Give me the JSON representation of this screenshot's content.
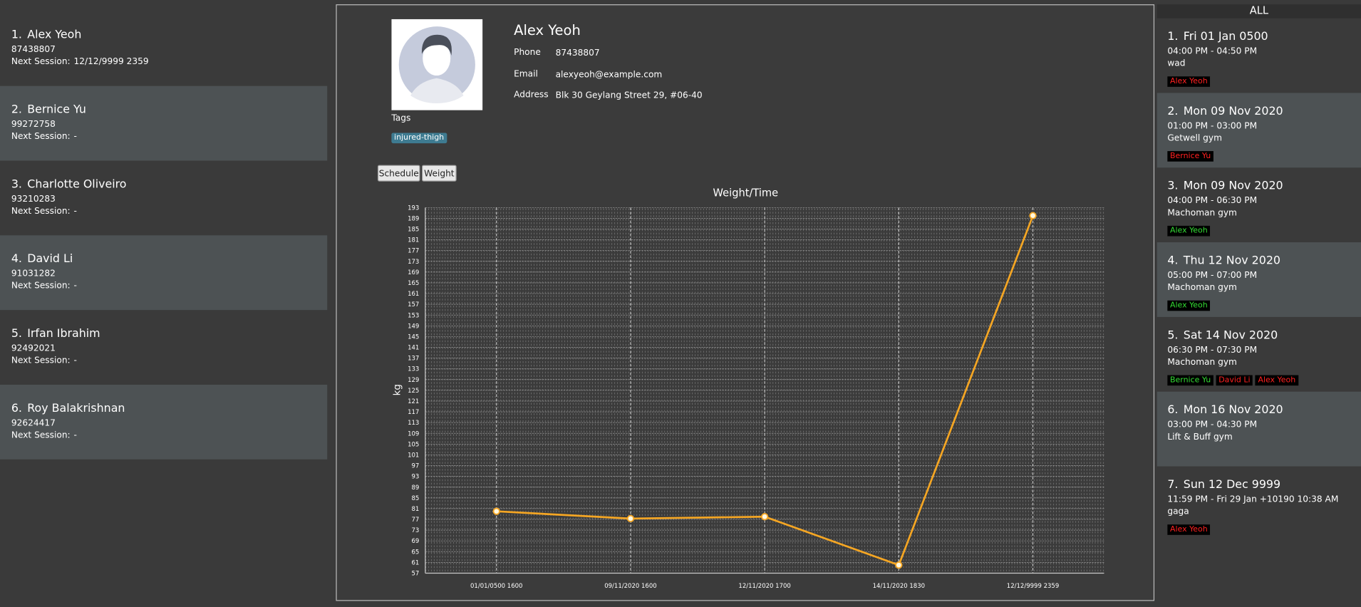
{
  "persons": [
    {
      "index": "1.",
      "name": "Alex Yeoh",
      "phone": "87438807",
      "next_session": "12/12/9999 2359"
    },
    {
      "index": "2.",
      "name": "Bernice Yu",
      "phone": "99272758",
      "next_session": "-"
    },
    {
      "index": "3.",
      "name": "Charlotte Oliveiro",
      "phone": "93210283",
      "next_session": "-"
    },
    {
      "index": "4.",
      "name": "David Li",
      "phone": "91031282",
      "next_session": "-"
    },
    {
      "index": "5.",
      "name": "Irfan Ibrahim",
      "phone": "92492021",
      "next_session": "-"
    },
    {
      "index": "6.",
      "name": "Roy Balakrishnan",
      "phone": "92624417",
      "next_session": "-"
    }
  ],
  "next_session_label": "Next Session:",
  "profile": {
    "name": "Alex Yeoh",
    "fields": [
      {
        "label": "Phone",
        "value": "87438807"
      },
      {
        "label": "Email",
        "value": "alexyeoh@example.com"
      },
      {
        "label": "Address",
        "value": "Blk 30 Geylang Street 29, #06-40"
      }
    ],
    "tags_label": "Tags",
    "tags": [
      "injured-thigh"
    ]
  },
  "tabs": [
    "Schedule",
    "Weight"
  ],
  "chart_data": {
    "type": "line",
    "title": "Weight/Time",
    "y_label": "kg",
    "categories": [
      "01/01/0500 1600",
      "09/11/2020 1600",
      "12/11/2020 1700",
      "14/11/2020 1830",
      "12/12/9999 2359"
    ],
    "values": [
      80,
      77.3,
      78,
      60,
      190
    ],
    "color": "#f5a623",
    "ylim": [
      57,
      193
    ],
    "yticks": [
      57,
      61,
      65,
      69,
      73,
      77,
      81,
      85,
      89,
      93,
      97,
      101,
      105,
      109,
      113,
      117,
      121,
      125,
      129,
      133,
      137,
      141,
      145,
      149,
      153,
      157,
      161,
      165,
      169,
      173,
      177,
      181,
      185,
      189,
      193
    ],
    "grid": true
  },
  "sessions_header": "ALL",
  "sessions": [
    {
      "index": "1.",
      "date": "Fri 01 Jan 0500",
      "time": "04:00 PM - 04:50 PM",
      "location": "wad",
      "clients": [
        {
          "name": "Alex Yeoh",
          "color": "#ff2020"
        }
      ]
    },
    {
      "index": "2.",
      "date": "Mon 09 Nov 2020",
      "time": "01:00 PM - 03:00 PM",
      "location": "Getwell gym",
      "clients": [
        {
          "name": "Bernice Yu",
          "color": "#ff2020"
        }
      ]
    },
    {
      "index": "3.",
      "date": "Mon 09 Nov 2020",
      "time": "04:00 PM - 06:30 PM",
      "location": "Machoman gym",
      "clients": [
        {
          "name": "Alex Yeoh",
          "color": "#33dd33"
        }
      ]
    },
    {
      "index": "4.",
      "date": "Thu 12 Nov 2020",
      "time": "05:00 PM - 07:00 PM",
      "location": "Machoman gym",
      "clients": [
        {
          "name": "Alex Yeoh",
          "color": "#33dd33"
        }
      ]
    },
    {
      "index": "5.",
      "date": "Sat 14 Nov 2020",
      "time": "06:30 PM - 07:30 PM",
      "location": "Machoman gym",
      "clients": [
        {
          "name": "Bernice Yu",
          "color": "#33dd33"
        },
        {
          "name": "David Li",
          "color": "#ff2020"
        },
        {
          "name": "Alex Yeoh",
          "color": "#ff2020"
        }
      ]
    },
    {
      "index": "6.",
      "date": "Mon 16 Nov 2020",
      "time": "03:00 PM - 04:30 PM",
      "location": "Lift & Buff gym",
      "clients": []
    },
    {
      "index": "7.",
      "date": "Sun 12 Dec 9999",
      "time": "11:59 PM - Fri 29 Jan +10190 10:38 AM",
      "location": "gaga",
      "clients": [
        {
          "name": "Alex Yeoh",
          "color": "#ff2020"
        }
      ]
    }
  ]
}
